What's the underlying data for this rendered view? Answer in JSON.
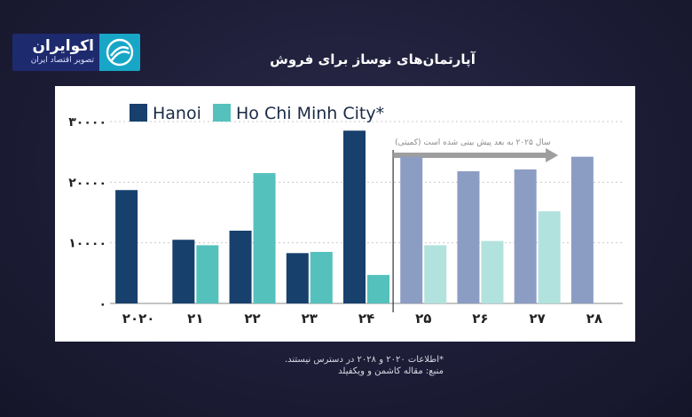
{
  "brand": {
    "name": "اکوایران",
    "tagline": "تصویر اقتصاد ایران"
  },
  "title": "آپارتمان‌های نوساز برای فروش",
  "notes": {
    "availability": "*اطلاعات ۲۰۲۰ و ۲۰۲۸ در دسترس نیستند.",
    "source": "منبع: مقاله کاشمن و ویکفیلد"
  },
  "colors": {
    "hanoi": "#17406d",
    "hcmc": "#55c1bd",
    "hanoi_forecast": "#8c9dc4",
    "hcmc_forecast": "#b2e2de",
    "arrow": "#9e9e9e"
  },
  "chart_data": {
    "type": "bar",
    "categories": [
      "۲۰۲۰",
      "۲۱",
      "۲۲",
      "۲۳",
      "۲۴",
      "۲۵",
      "۲۶",
      "۲۷",
      "۲۸"
    ],
    "series": [
      {
        "name": "Hanoi",
        "values": [
          18700,
          10500,
          12000,
          8300,
          28500,
          24200,
          21800,
          22100,
          24200
        ]
      },
      {
        "name": "Ho Chi Minh City*",
        "values": [
          null,
          9600,
          21500,
          8500,
          4700,
          9600,
          10300,
          15200,
          null
        ]
      }
    ],
    "ylim": [
      0,
      30000
    ],
    "yticks": [
      {
        "value": 0,
        "label": "۰"
      },
      {
        "value": 10000,
        "label": "۱۰۰۰۰"
      },
      {
        "value": 20000,
        "label": "۲۰۰۰۰"
      },
      {
        "value": 30000,
        "label": "۳۰۰۰۰"
      }
    ],
    "grid": true,
    "legend": "top-left",
    "forecast_start_index": 5,
    "annotation": "سال ۲۰۲۵ به بعد پیش بینی شده است (کمیتی)"
  }
}
